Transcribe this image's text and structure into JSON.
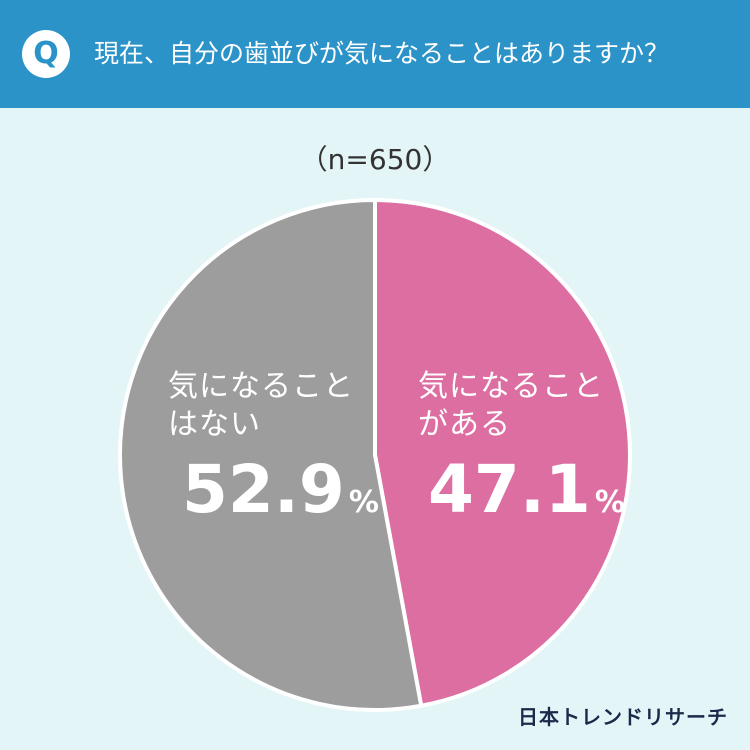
{
  "header": {
    "badge": "Q",
    "question": "現在、自分の歯並びが気になることはありますか？"
  },
  "sample_size": "（n=650）",
  "chart_data": {
    "type": "pie",
    "categories": [
      "気になることがある",
      "気になることはない"
    ],
    "values": [
      47.1,
      52.9
    ],
    "unit": "%",
    "colors": [
      "#dd6ea1",
      "#9d9d9d"
    ],
    "slices": [
      {
        "label_line1": "気になること",
        "label_line2": "がある",
        "value": "47.1",
        "pct": "%"
      },
      {
        "label_line1": "気になること",
        "label_line2": "はない",
        "value": "52.9",
        "pct": "%"
      }
    ]
  },
  "brand": {
    "logo": "日本トレンドリサーチ"
  }
}
